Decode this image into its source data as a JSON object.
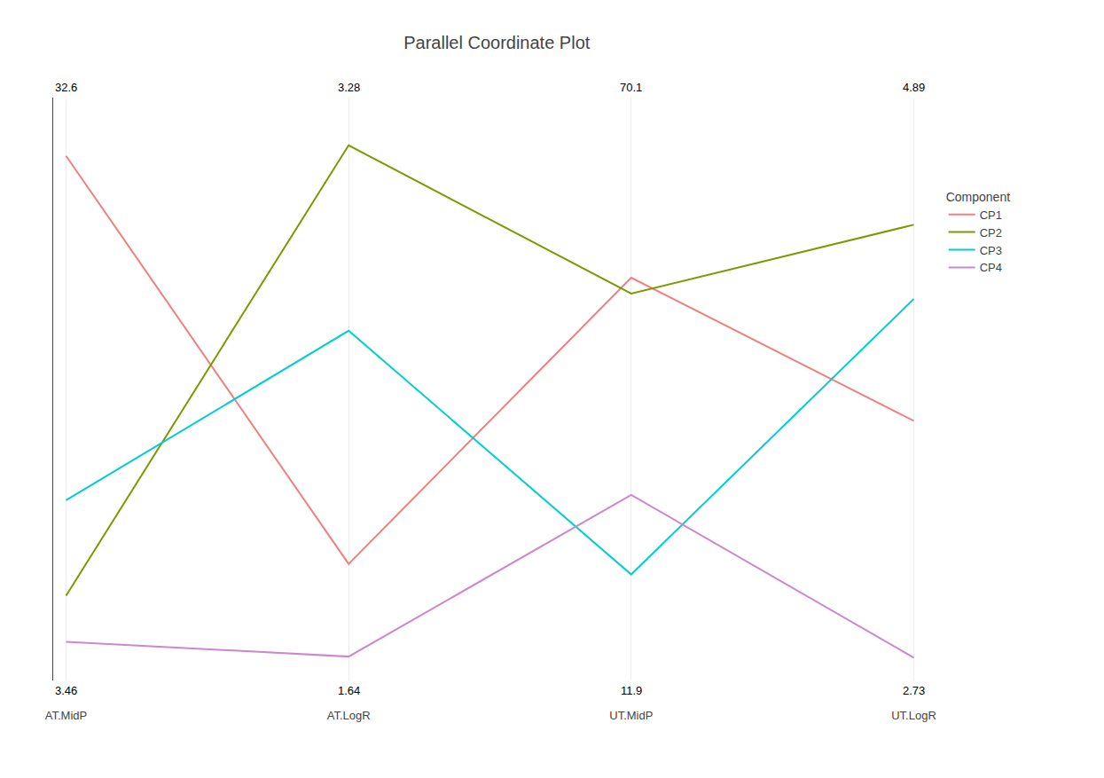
{
  "chart_data": {
    "type": "line",
    "title": "Parallel Coordinate Plot",
    "categories": [
      "AT.MidP",
      "AT.LogR",
      "UT.MidP",
      "UT.LogR"
    ],
    "axis_max": [
      32.6,
      3.28,
      70.1,
      4.89
    ],
    "axis_min": [
      3.46,
      1.64,
      11.9,
      2.73
    ],
    "series": [
      {
        "name": "CP1",
        "color": "#F08080",
        "values": [
          0.97,
          0.2,
          0.74,
          0.47
        ]
      },
      {
        "name": "CP2",
        "color": "#7B9A00",
        "values": [
          0.14,
          0.99,
          0.71,
          0.84
        ]
      },
      {
        "name": "CP3",
        "color": "#00CED1",
        "values": [
          0.32,
          0.64,
          0.18,
          0.7
        ]
      },
      {
        "name": "CP4",
        "color": "#CC88CC",
        "values": [
          0.053,
          0.025,
          0.33,
          0.023
        ]
      }
    ],
    "ylim": [
      -0.02,
      1.08
    ],
    "tick_labels": "x",
    "grid": true,
    "legend": "right",
    "legend_title": "Component"
  }
}
